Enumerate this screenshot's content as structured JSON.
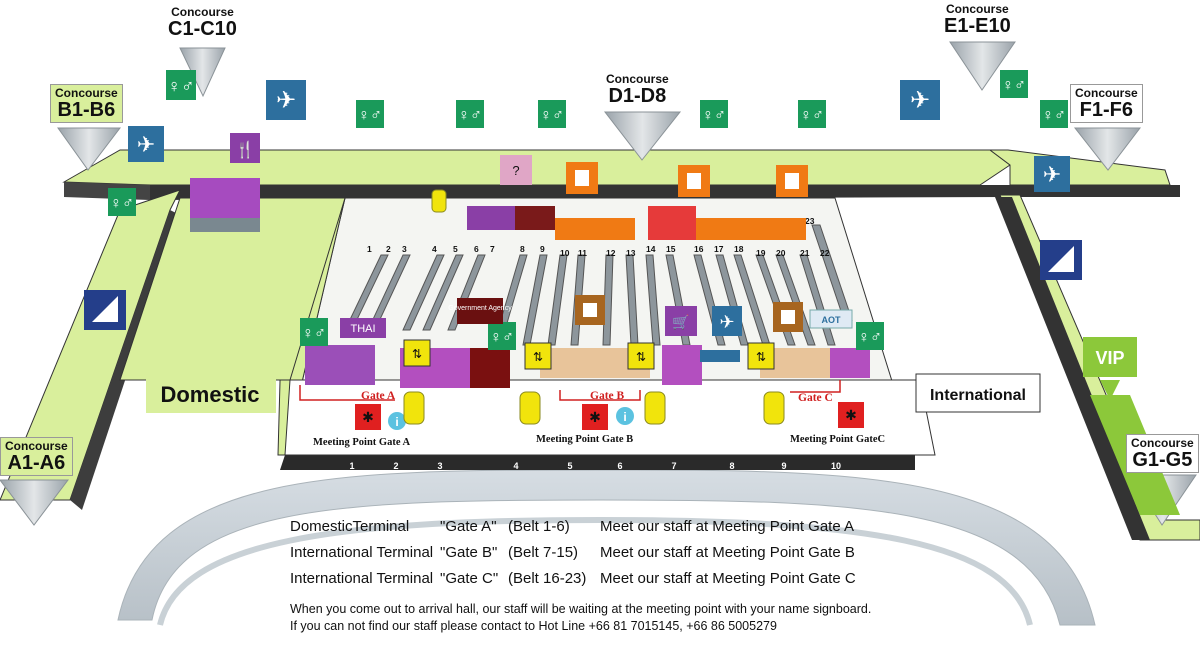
{
  "concourses": [
    {
      "key": "c1",
      "top": "Concourse",
      "name": "C1-C10"
    },
    {
      "key": "b1",
      "top": "Concourse",
      "name": "B1-B6"
    },
    {
      "key": "a1",
      "top": "Concourse",
      "name": "A1-A6"
    },
    {
      "key": "d1",
      "top": "Concourse",
      "name": "D1-D8"
    },
    {
      "key": "e1",
      "top": "Concourse",
      "name": "E1-E10"
    },
    {
      "key": "f1",
      "top": "Concourse",
      "name": "F1-F6"
    },
    {
      "key": "g1",
      "top": "Concourse",
      "name": "G1-G5"
    }
  ],
  "zones": {
    "domestic": "Domestic",
    "international": "International",
    "vip": "VIP"
  },
  "signs": {
    "government": "Government Agency",
    "thai": "THAI",
    "aot": "AOT"
  },
  "belts": [
    "1",
    "2",
    "3",
    "4",
    "5",
    "6",
    "7",
    "8",
    "9",
    "10",
    "11",
    "12",
    "13",
    "14",
    "15",
    "16",
    "17",
    "18",
    "19",
    "20",
    "21",
    "22",
    "23"
  ],
  "doors": [
    "1",
    "2",
    "3",
    "4",
    "5",
    "6",
    "7",
    "8",
    "9",
    "10"
  ],
  "gates": {
    "a": "Gate A",
    "b": "Gate B",
    "c": "Gate C"
  },
  "meeting_points": {
    "a": "Meeting Point Gate A",
    "b": "Meeting Point Gate B",
    "c": "Meeting Point GateC"
  },
  "instructions": [
    {
      "terminal": "DomesticTerminal",
      "gate": "\"Gate A\"",
      "belt": "(Belt 1-6)",
      "meet": "Meet our staff at Meeting Point Gate A"
    },
    {
      "terminal": "International Terminal",
      "gate": "\"Gate B\"",
      "belt": "(Belt 7-15)",
      "meet": "Meet our staff at Meeting Point Gate B"
    },
    {
      "terminal": "International Terminal",
      "gate": "\"Gate C\"",
      "belt": "(Belt 16-23)",
      "meet": "Meet our staff at Meeting Point Gate C"
    }
  ],
  "notes": [
    "When you come out to arrival hall, our staff will be waiting at the meeting point with your name signboard.",
    "If you can not find our staff please contact to Hot Line +66 81  7015145, +66 86 5005279"
  ],
  "colors": {
    "floor": "#d9ef9c",
    "wall": "#2a2a2a",
    "toilet": "#1a9a5a",
    "airplane": "#2d6f9e",
    "shop": "#8a3fa6",
    "info": "#5bc2e0",
    "meeting": "#e02020",
    "yellow": "#f1e40c",
    "orange": "#f07a14",
    "brown": "#a7651f",
    "vip": "#8cc83a"
  },
  "icons": [
    "toilet-icon",
    "departure-airplane-icon",
    "restaurant-icon",
    "information-icon",
    "meeting-point-icon",
    "elevator-icon",
    "customs-icon",
    "shopping-cart-icon",
    "cart-icon",
    "atm-icon"
  ]
}
